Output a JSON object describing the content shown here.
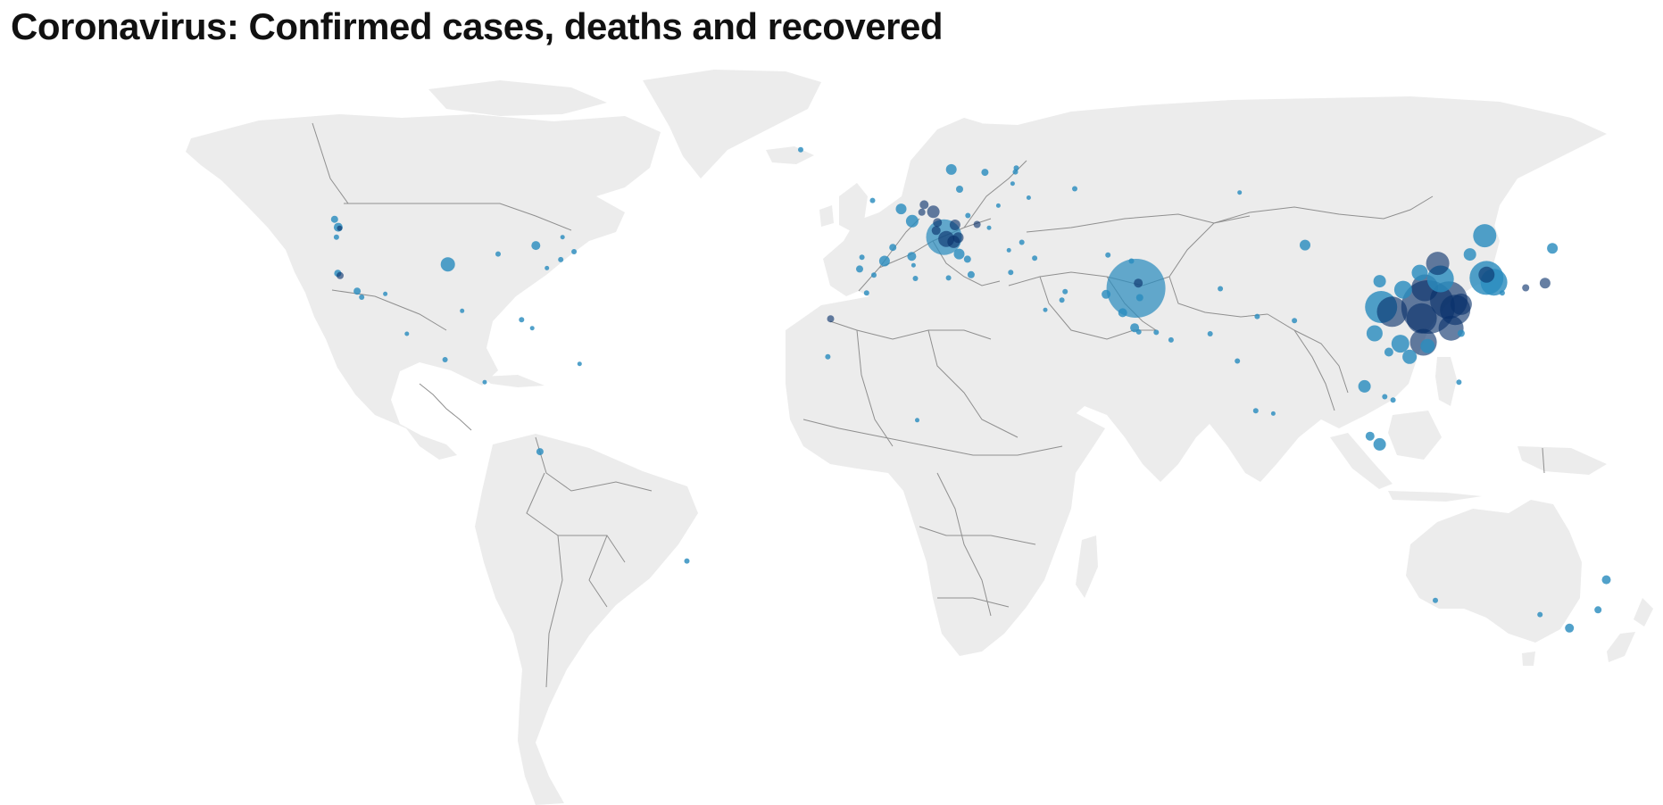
{
  "title": "Coronavirus: Confirmed cases, deaths and recovered",
  "colors": {
    "land": "#ececec",
    "border": "#8f8f8f",
    "bubble": "#2b8cbe",
    "bubble_dark": "#08306b"
  },
  "map_data": {
    "type": "bubble-map",
    "projection": "equirectangular",
    "markers": [
      {
        "lat": 30.6,
        "lon": 114.3,
        "size": 60,
        "tone": "dark"
      },
      {
        "lat": 32.1,
        "lon": 118.8,
        "size": 42,
        "tone": "dark"
      },
      {
        "lat": 30.0,
        "lon": 120.2,
        "size": 34,
        "tone": "dark"
      },
      {
        "lat": 28.2,
        "lon": 112.9,
        "size": 34,
        "tone": "dark"
      },
      {
        "lat": 26.1,
        "lon": 119.3,
        "size": 28,
        "tone": "dark"
      },
      {
        "lat": 34.7,
        "lon": 113.6,
        "size": 30,
        "tone": "dark"
      },
      {
        "lat": 36.6,
        "lon": 117.0,
        "size": 30,
        "tone": "mid"
      },
      {
        "lat": 39.9,
        "lon": 116.4,
        "size": 26,
        "tone": "dark"
      },
      {
        "lat": 31.2,
        "lon": 121.5,
        "size": 24,
        "tone": "dark"
      },
      {
        "lat": 23.1,
        "lon": 113.3,
        "size": 30,
        "tone": "dark"
      },
      {
        "lat": 30.6,
        "lon": 104.1,
        "size": 36,
        "tone": "mid"
      },
      {
        "lat": 29.6,
        "lon": 106.5,
        "size": 34,
        "tone": "dark"
      },
      {
        "lat": 25.0,
        "lon": 102.7,
        "size": 18,
        "tone": "mid"
      },
      {
        "lat": 22.8,
        "lon": 108.3,
        "size": 20,
        "tone": "mid"
      },
      {
        "lat": 20.0,
        "lon": 110.3,
        "size": 16,
        "tone": "mid"
      },
      {
        "lat": 37.9,
        "lon": 112.5,
        "size": 18,
        "tone": "mid"
      },
      {
        "lat": 34.3,
        "lon": 108.9,
        "size": 20,
        "tone": "mid"
      },
      {
        "lat": 45.8,
        "lon": 126.6,
        "size": 26,
        "tone": "mid"
      },
      {
        "lat": 41.8,
        "lon": 123.4,
        "size": 14,
        "tone": "mid"
      },
      {
        "lat": 36.1,
        "lon": 103.8,
        "size": 14,
        "tone": "mid"
      },
      {
        "lat": 43.8,
        "lon": 87.6,
        "size": 12,
        "tone": "mid"
      },
      {
        "lat": 36.8,
        "lon": 127.0,
        "size": 38,
        "tone": "mid"
      },
      {
        "lat": 35.9,
        "lon": 128.6,
        "size": 30,
        "tone": "mid"
      },
      {
        "lat": 37.5,
        "lon": 127.0,
        "size": 18,
        "tone": "dark"
      },
      {
        "lat": 35.7,
        "lon": 139.7,
        "size": 12,
        "tone": "dark"
      },
      {
        "lat": 34.7,
        "lon": 135.5,
        "size": 8,
        "tone": "dark"
      },
      {
        "lat": 43.1,
        "lon": 141.3,
        "size": 12,
        "tone": "mid"
      },
      {
        "lat": 33.6,
        "lon": 130.4,
        "size": 6,
        "tone": "mid"
      },
      {
        "lat": 22.3,
        "lon": 114.2,
        "size": 16,
        "tone": "mid"
      },
      {
        "lat": 25.0,
        "lon": 121.5,
        "size": 8,
        "tone": "mid"
      },
      {
        "lat": 13.7,
        "lon": 100.5,
        "size": 14,
        "tone": "mid"
      },
      {
        "lat": 1.35,
        "lon": 103.8,
        "size": 14,
        "tone": "mid"
      },
      {
        "lat": 3.1,
        "lon": 101.7,
        "size": 10,
        "tone": "mid"
      },
      {
        "lat": 21.0,
        "lon": 105.8,
        "size": 10,
        "tone": "mid"
      },
      {
        "lat": 10.8,
        "lon": 106.7,
        "size": 6,
        "tone": "mid"
      },
      {
        "lat": 11.5,
        "lon": 104.9,
        "size": 6,
        "tone": "mid"
      },
      {
        "lat": 14.6,
        "lon": 121.0,
        "size": 6,
        "tone": "mid"
      },
      {
        "lat": 27.7,
        "lon": 85.3,
        "size": 6,
        "tone": "mid"
      },
      {
        "lat": 28.6,
        "lon": 77.2,
        "size": 6,
        "tone": "mid"
      },
      {
        "lat": 19.1,
        "lon": 72.9,
        "size": 6,
        "tone": "mid"
      },
      {
        "lat": 8.5,
        "lon": 76.9,
        "size": 6,
        "tone": "mid"
      },
      {
        "lat": 7.9,
        "lon": 80.7,
        "size": 5,
        "tone": "mid"
      },
      {
        "lat": 34.6,
        "lon": 50.9,
        "size": 66,
        "tone": "light"
      },
      {
        "lat": 35.7,
        "lon": 51.4,
        "size": 10,
        "tone": "dark"
      },
      {
        "lat": 32.6,
        "lon": 51.7,
        "size": 8,
        "tone": "mid"
      },
      {
        "lat": 29.4,
        "lon": 48.0,
        "size": 10,
        "tone": "mid"
      },
      {
        "lat": 26.2,
        "lon": 50.6,
        "size": 10,
        "tone": "mid"
      },
      {
        "lat": 25.3,
        "lon": 51.5,
        "size": 6,
        "tone": "mid"
      },
      {
        "lat": 25.2,
        "lon": 55.3,
        "size": 6,
        "tone": "mid"
      },
      {
        "lat": 23.6,
        "lon": 58.5,
        "size": 6,
        "tone": "mid"
      },
      {
        "lat": 33.3,
        "lon": 44.4,
        "size": 10,
        "tone": "mid"
      },
      {
        "lat": 33.9,
        "lon": 35.5,
        "size": 6,
        "tone": "mid"
      },
      {
        "lat": 32.1,
        "lon": 34.8,
        "size": 6,
        "tone": "mid"
      },
      {
        "lat": 41.7,
        "lon": 44.8,
        "size": 6,
        "tone": "mid"
      },
      {
        "lat": 40.4,
        "lon": 49.9,
        "size": 6,
        "tone": "mid"
      },
      {
        "lat": 34.5,
        "lon": 69.2,
        "size": 6,
        "tone": "mid"
      },
      {
        "lat": 24.9,
        "lon": 67.0,
        "size": 6,
        "tone": "mid"
      },
      {
        "lat": 30.0,
        "lon": 31.2,
        "size": 5,
        "tone": "mid"
      },
      {
        "lat": 45.5,
        "lon": 9.2,
        "size": 40,
        "tone": "light"
      },
      {
        "lat": 45.1,
        "lon": 9.7,
        "size": 18,
        "tone": "dark"
      },
      {
        "lat": 44.5,
        "lon": 11.3,
        "size": 14,
        "tone": "dark"
      },
      {
        "lat": 45.4,
        "lon": 12.3,
        "size": 12,
        "tone": "dark"
      },
      {
        "lat": 46.9,
        "lon": 7.5,
        "size": 10,
        "tone": "dark"
      },
      {
        "lat": 48.9,
        "lon": 2.3,
        "size": 14,
        "tone": "mid"
      },
      {
        "lat": 48.6,
        "lon": 7.8,
        "size": 10,
        "tone": "dark"
      },
      {
        "lat": 50.9,
        "lon": 6.9,
        "size": 14,
        "tone": "dark"
      },
      {
        "lat": 51.5,
        "lon": -0.1,
        "size": 12,
        "tone": "mid"
      },
      {
        "lat": 53.3,
        "lon": -6.3,
        "size": 6,
        "tone": "mid"
      },
      {
        "lat": 52.4,
        "lon": 4.9,
        "size": 10,
        "tone": "dark"
      },
      {
        "lat": 50.8,
        "lon": 4.4,
        "size": 8,
        "tone": "dark"
      },
      {
        "lat": 48.1,
        "lon": 11.6,
        "size": 12,
        "tone": "dark"
      },
      {
        "lat": 48.2,
        "lon": 16.4,
        "size": 8,
        "tone": "dark"
      },
      {
        "lat": 55.7,
        "lon": 12.6,
        "size": 8,
        "tone": "mid"
      },
      {
        "lat": 59.3,
        "lon": 18.1,
        "size": 8,
        "tone": "mid"
      },
      {
        "lat": 59.9,
        "lon": 10.8,
        "size": 12,
        "tone": "mid"
      },
      {
        "lat": 60.2,
        "lon": 24.9,
        "size": 6,
        "tone": "mid"
      },
      {
        "lat": 59.4,
        "lon": 24.7,
        "size": 6,
        "tone": "mid"
      },
      {
        "lat": 56.9,
        "lon": 24.1,
        "size": 5,
        "tone": "mid"
      },
      {
        "lat": 52.2,
        "lon": 21.0,
        "size": 5,
        "tone": "mid"
      },
      {
        "lat": 50.1,
        "lon": 14.4,
        "size": 6,
        "tone": "mid"
      },
      {
        "lat": 47.5,
        "lon": 19.0,
        "size": 5,
        "tone": "mid"
      },
      {
        "lat": 44.4,
        "lon": 26.1,
        "size": 6,
        "tone": "mid"
      },
      {
        "lat": 42.7,
        "lon": 23.3,
        "size": 5,
        "tone": "mid"
      },
      {
        "lat": 37.98,
        "lon": 23.7,
        "size": 6,
        "tone": "mid"
      },
      {
        "lat": 41.0,
        "lon": 28.9,
        "size": 6,
        "tone": "mid"
      },
      {
        "lat": 40.4,
        "lon": -3.7,
        "size": 12,
        "tone": "mid"
      },
      {
        "lat": 41.4,
        "lon": 2.2,
        "size": 10,
        "tone": "mid"
      },
      {
        "lat": 43.3,
        "lon": -1.9,
        "size": 8,
        "tone": "mid"
      },
      {
        "lat": 38.7,
        "lon": -9.1,
        "size": 8,
        "tone": "mid"
      },
      {
        "lat": 41.2,
        "lon": -8.6,
        "size": 6,
        "tone": "mid"
      },
      {
        "lat": 39.5,
        "lon": 2.6,
        "size": 5,
        "tone": "mid"
      },
      {
        "lat": 37.4,
        "lon": -6.0,
        "size": 6,
        "tone": "mid"
      },
      {
        "lat": 41.9,
        "lon": 12.5,
        "size": 12,
        "tone": "mid"
      },
      {
        "lat": 40.8,
        "lon": 14.3,
        "size": 8,
        "tone": "mid"
      },
      {
        "lat": 37.5,
        "lon": 15.1,
        "size": 8,
        "tone": "mid"
      },
      {
        "lat": 36.8,
        "lon": 10.2,
        "size": 6,
        "tone": "mid"
      },
      {
        "lat": 36.7,
        "lon": 3.0,
        "size": 6,
        "tone": "mid"
      },
      {
        "lat": 33.6,
        "lon": -7.6,
        "size": 6,
        "tone": "mid"
      },
      {
        "lat": 28.1,
        "lon": -15.4,
        "size": 8,
        "tone": "dark"
      },
      {
        "lat": 64.1,
        "lon": -21.9,
        "size": 6,
        "tone": "mid"
      },
      {
        "lat": 55.8,
        "lon": 37.6,
        "size": 6,
        "tone": "mid"
      },
      {
        "lat": 53.9,
        "lon": 27.6,
        "size": 5,
        "tone": "mid"
      },
      {
        "lat": 55.0,
        "lon": 73.4,
        "size": 5,
        "tone": "mid"
      },
      {
        "lat": 47.6,
        "lon": -122.3,
        "size": 10,
        "tone": "mid"
      },
      {
        "lat": 47.4,
        "lon": -122.0,
        "size": 6,
        "tone": "dark"
      },
      {
        "lat": 45.5,
        "lon": -122.7,
        "size": 6,
        "tone": "mid"
      },
      {
        "lat": 37.8,
        "lon": -122.4,
        "size": 8,
        "tone": "mid"
      },
      {
        "lat": 37.3,
        "lon": -121.9,
        "size": 8,
        "tone": "dark"
      },
      {
        "lat": 34.0,
        "lon": -118.2,
        "size": 8,
        "tone": "mid"
      },
      {
        "lat": 32.7,
        "lon": -117.2,
        "size": 6,
        "tone": "mid"
      },
      {
        "lat": 33.4,
        "lon": -112.1,
        "size": 5,
        "tone": "mid"
      },
      {
        "lat": 49.3,
        "lon": -123.1,
        "size": 8,
        "tone": "mid"
      },
      {
        "lat": 43.7,
        "lon": -79.4,
        "size": 10,
        "tone": "mid"
      },
      {
        "lat": 45.5,
        "lon": -73.6,
        "size": 5,
        "tone": "mid"
      },
      {
        "lat": 41.9,
        "lon": -87.6,
        "size": 6,
        "tone": "mid"
      },
      {
        "lat": 39.7,
        "lon": -98.5,
        "size": 16,
        "tone": "mid"
      },
      {
        "lat": 40.7,
        "lon": -74.0,
        "size": 6,
        "tone": "mid"
      },
      {
        "lat": 42.4,
        "lon": -71.1,
        "size": 6,
        "tone": "mid"
      },
      {
        "lat": 38.9,
        "lon": -77.0,
        "size": 5,
        "tone": "mid"
      },
      {
        "lat": 29.8,
        "lon": -95.4,
        "size": 5,
        "tone": "mid"
      },
      {
        "lat": 27.9,
        "lon": -82.5,
        "size": 6,
        "tone": "mid"
      },
      {
        "lat": 26.1,
        "lon": -80.2,
        "size": 5,
        "tone": "mid"
      },
      {
        "lat": 19.4,
        "lon": -99.1,
        "size": 6,
        "tone": "mid"
      },
      {
        "lat": 24.9,
        "lon": -107.4,
        "size": 5,
        "tone": "mid"
      },
      {
        "lat": 18.5,
        "lon": -69.9,
        "size": 5,
        "tone": "mid"
      },
      {
        "lat": 14.6,
        "lon": -90.5,
        "size": 5,
        "tone": "mid"
      },
      {
        "lat": -0.2,
        "lon": -78.5,
        "size": 8,
        "tone": "mid"
      },
      {
        "lat": -23.5,
        "lon": -46.6,
        "size": 6,
        "tone": "mid"
      },
      {
        "lat": 20.0,
        "lon": -16.0,
        "size": 6,
        "tone": "mid"
      },
      {
        "lat": 6.5,
        "lon": 3.4,
        "size": 5,
        "tone": "mid"
      },
      {
        "lat": -33.9,
        "lon": 151.2,
        "size": 8,
        "tone": "mid"
      },
      {
        "lat": -37.8,
        "lon": 145.0,
        "size": 10,
        "tone": "mid"
      },
      {
        "lat": -27.5,
        "lon": 153.0,
        "size": 10,
        "tone": "mid"
      },
      {
        "lat": -34.9,
        "lon": 138.6,
        "size": 6,
        "tone": "mid"
      },
      {
        "lat": -31.9,
        "lon": 115.9,
        "size": 6,
        "tone": "mid"
      },
      {
        "lat": -36.8,
        "lon": 174.8,
        "size": 6,
        "tone": "mid"
      }
    ]
  }
}
